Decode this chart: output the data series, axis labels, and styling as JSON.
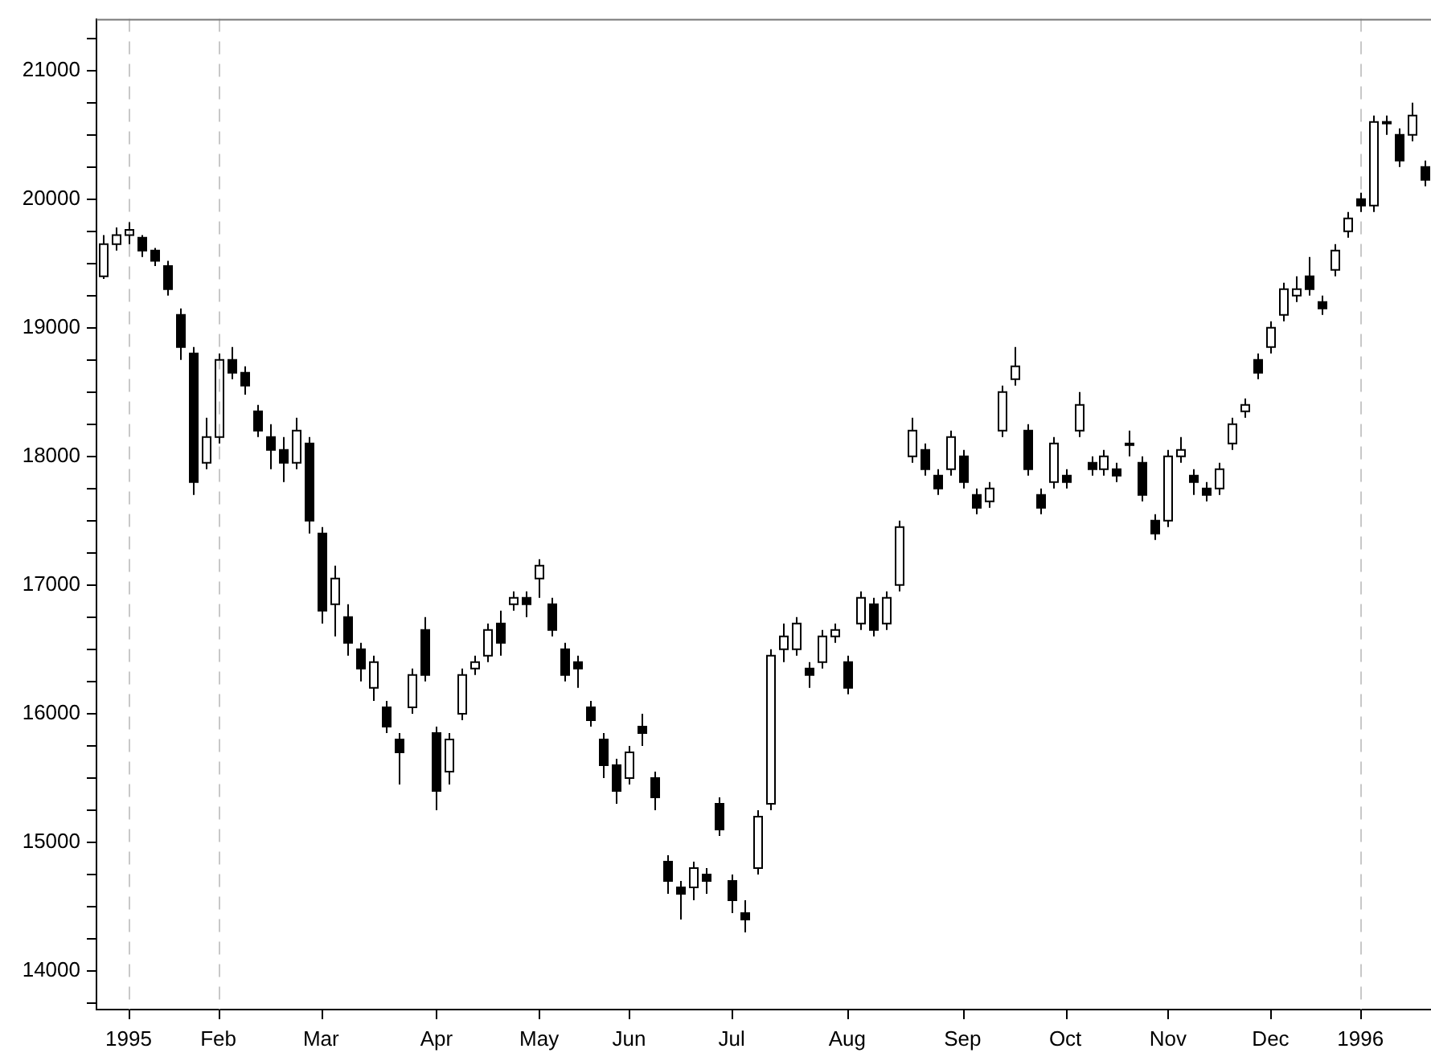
{
  "chart_data": {
    "type": "candlestick",
    "color": "#000000",
    "grid": false,
    "legend": false,
    "categories": [
      null,
      null,
      "1995",
      null,
      null,
      null,
      null,
      null,
      null,
      "Feb",
      null,
      null,
      null,
      null,
      null,
      null,
      null,
      "Mar",
      null,
      null,
      null,
      null,
      null,
      null,
      null,
      null,
      "Apr",
      null,
      null,
      null,
      null,
      null,
      null,
      null,
      "May",
      null,
      null,
      null,
      null,
      null,
      null,
      "Jun",
      null,
      null,
      null,
      null,
      null,
      null,
      null,
      "Jul",
      null,
      null,
      null,
      null,
      null,
      null,
      null,
      null,
      "Aug",
      null,
      null,
      null,
      null,
      null,
      null,
      null,
      null,
      "Sep",
      null,
      null,
      null,
      null,
      null,
      null,
      null,
      "Oct",
      null,
      null,
      null,
      null,
      null,
      null,
      null,
      "Nov",
      null,
      null,
      null,
      null,
      null,
      null,
      null,
      "Dec",
      null,
      null,
      null,
      null,
      null,
      null,
      "1996",
      null,
      null,
      null,
      null,
      null
    ],
    "ohlc": [
      [
        19400,
        19720,
        19380,
        19650
      ],
      [
        19650,
        19780,
        19600,
        19720
      ],
      [
        19720,
        19820,
        19650,
        19760
      ],
      [
        19700,
        19720,
        19550,
        19600
      ],
      [
        19600,
        19620,
        19480,
        19520
      ],
      [
        19480,
        19520,
        19250,
        19300
      ],
      [
        19100,
        19150,
        18750,
        18850
      ],
      [
        18800,
        18850,
        17700,
        17800
      ],
      [
        17950,
        18300,
        17900,
        18150
      ],
      [
        18150,
        18800,
        18100,
        18750
      ],
      [
        18750,
        18850,
        18600,
        18650
      ],
      [
        18650,
        18700,
        18480,
        18550
      ],
      [
        18350,
        18400,
        18150,
        18200
      ],
      [
        18150,
        18250,
        17900,
        18050
      ],
      [
        18050,
        18150,
        17800,
        17950
      ],
      [
        17950,
        18300,
        17900,
        18200
      ],
      [
        18100,
        18150,
        17400,
        17500
      ],
      [
        17400,
        17450,
        16700,
        16800
      ],
      [
        16850,
        17150,
        16600,
        17050
      ],
      [
        16750,
        16850,
        16450,
        16550
      ],
      [
        16500,
        16550,
        16250,
        16350
      ],
      [
        16200,
        16450,
        16100,
        16400
      ],
      [
        16050,
        16100,
        15850,
        15900
      ],
      [
        15800,
        15850,
        15450,
        15700
      ],
      [
        16050,
        16350,
        16000,
        16300
      ],
      [
        16650,
        16750,
        16250,
        16300
      ],
      [
        15850,
        15900,
        15250,
        15400
      ],
      [
        15550,
        15850,
        15450,
        15800
      ],
      [
        16000,
        16350,
        15950,
        16300
      ],
      [
        16350,
        16450,
        16300,
        16400
      ],
      [
        16450,
        16700,
        16400,
        16650
      ],
      [
        16700,
        16800,
        16450,
        16550
      ],
      [
        16850,
        16950,
        16800,
        16900
      ],
      [
        16900,
        16950,
        16750,
        16850
      ],
      [
        17050,
        17200,
        16900,
        17150
      ],
      [
        16850,
        16900,
        16600,
        16650
      ],
      [
        16500,
        16550,
        16250,
        16300
      ],
      [
        16400,
        16450,
        16200,
        16350
      ],
      [
        16050,
        16100,
        15900,
        15950
      ],
      [
        15800,
        15850,
        15500,
        15600
      ],
      [
        15600,
        15650,
        15300,
        15400
      ],
      [
        15500,
        15750,
        15450,
        15700
      ],
      [
        15900,
        16000,
        15750,
        15850
      ],
      [
        15500,
        15550,
        15250,
        15350
      ],
      [
        14850,
        14900,
        14600,
        14700
      ],
      [
        14650,
        14700,
        14400,
        14600
      ],
      [
        14650,
        14850,
        14550,
        14800
      ],
      [
        14750,
        14800,
        14600,
        14700
      ],
      [
        15300,
        15350,
        15050,
        15100
      ],
      [
        14700,
        14750,
        14450,
        14550
      ],
      [
        14450,
        14550,
        14300,
        14400
      ],
      [
        14800,
        15250,
        14750,
        15200
      ],
      [
        15300,
        16500,
        15250,
        16450
      ],
      [
        16500,
        16700,
        16400,
        16600
      ],
      [
        16500,
        16750,
        16450,
        16700
      ],
      [
        16350,
        16400,
        16200,
        16300
      ],
      [
        16400,
        16650,
        16350,
        16600
      ],
      [
        16600,
        16700,
        16550,
        16650
      ],
      [
        16400,
        16450,
        16150,
        16200
      ],
      [
        16700,
        16950,
        16650,
        16900
      ],
      [
        16850,
        16900,
        16600,
        16650
      ],
      [
        16700,
        16950,
        16650,
        16900
      ],
      [
        17000,
        17500,
        16950,
        17450
      ],
      [
        18000,
        18300,
        17950,
        18200
      ],
      [
        18050,
        18100,
        17850,
        17900
      ],
      [
        17850,
        17900,
        17700,
        17750
      ],
      [
        17900,
        18200,
        17850,
        18150
      ],
      [
        18000,
        18050,
        17750,
        17800
      ],
      [
        17700,
        17750,
        17550,
        17600
      ],
      [
        17650,
        17800,
        17600,
        17750
      ],
      [
        18200,
        18550,
        18150,
        18500
      ],
      [
        18600,
        18850,
        18550,
        18700
      ],
      [
        18200,
        18250,
        17850,
        17900
      ],
      [
        17700,
        17750,
        17550,
        17600
      ],
      [
        17800,
        18150,
        17750,
        18100
      ],
      [
        17850,
        17900,
        17750,
        17800
      ],
      [
        18200,
        18500,
        18150,
        18400
      ],
      [
        17950,
        18000,
        17850,
        17900
      ],
      [
        17900,
        18050,
        17850,
        18000
      ],
      [
        17900,
        17950,
        17800,
        17850
      ],
      [
        18100,
        18200,
        18000,
        18100
      ],
      [
        17950,
        18000,
        17650,
        17700
      ],
      [
        17500,
        17550,
        17350,
        17400
      ],
      [
        17500,
        18050,
        17450,
        18000
      ],
      [
        18000,
        18150,
        17950,
        18050
      ],
      [
        17850,
        17900,
        17700,
        17800
      ],
      [
        17750,
        17800,
        17650,
        17700
      ],
      [
        17750,
        17950,
        17700,
        17900
      ],
      [
        18100,
        18300,
        18050,
        18250
      ],
      [
        18350,
        18450,
        18300,
        18400
      ],
      [
        18750,
        18800,
        18600,
        18650
      ],
      [
        18850,
        19050,
        18800,
        19000
      ],
      [
        19100,
        19350,
        19050,
        19300
      ],
      [
        19250,
        19400,
        19200,
        19300
      ],
      [
        19400,
        19550,
        19250,
        19300
      ],
      [
        19200,
        19250,
        19100,
        19150
      ],
      [
        19450,
        19650,
        19400,
        19600
      ],
      [
        19750,
        19900,
        19700,
        19850
      ],
      [
        20000,
        20050,
        19900,
        19950
      ],
      [
        19950,
        20650,
        19900,
        20600
      ],
      [
        20600,
        20650,
        20500,
        20600
      ],
      [
        20500,
        20550,
        20250,
        20300
      ],
      [
        20500,
        20750,
        20450,
        20650
      ],
      [
        20250,
        20300,
        20100,
        20150
      ]
    ],
    "ylim": [
      13700,
      21400
    ],
    "yticks": [
      {
        "value": 13750,
        "label": null
      },
      14000,
      {
        "value": 14250,
        "label": null
      },
      {
        "value": 14500,
        "label": null
      },
      {
        "value": 14750,
        "label": null
      },
      15000,
      {
        "value": 15250,
        "label": null
      },
      {
        "value": 15500,
        "label": null
      },
      {
        "value": 15750,
        "label": null
      },
      16000,
      {
        "value": 16250,
        "label": null
      },
      {
        "value": 16500,
        "label": null
      },
      {
        "value": 16750,
        "label": null
      },
      17000,
      {
        "value": 17250,
        "label": null
      },
      {
        "value": 17500,
        "label": null
      },
      {
        "value": 17750,
        "label": null
      },
      18000,
      {
        "value": 18250,
        "label": null
      },
      {
        "value": 18500,
        "label": null
      },
      {
        "value": 18750,
        "label": null
      },
      19000,
      {
        "value": 19250,
        "label": null
      },
      {
        "value": 19500,
        "label": null
      },
      {
        "value": 19750,
        "label": null
      },
      20000,
      {
        "value": 20250,
        "label": null
      },
      {
        "value": 20500,
        "label": null
      },
      {
        "value": 20750,
        "label": null
      },
      21000,
      {
        "value": 21250,
        "label": null
      }
    ],
    "ref_lines": [
      {
        "axis": "x",
        "value": "1995",
        "color": "#c8c8c8",
        "line_style": "dashed"
      },
      {
        "axis": "x",
        "value": "Feb",
        "color": "#c8c8c8",
        "line_style": "dashed"
      },
      {
        "axis": "x",
        "value": "1996",
        "color": "#c8c8c8",
        "line_style": "dashed"
      }
    ]
  }
}
